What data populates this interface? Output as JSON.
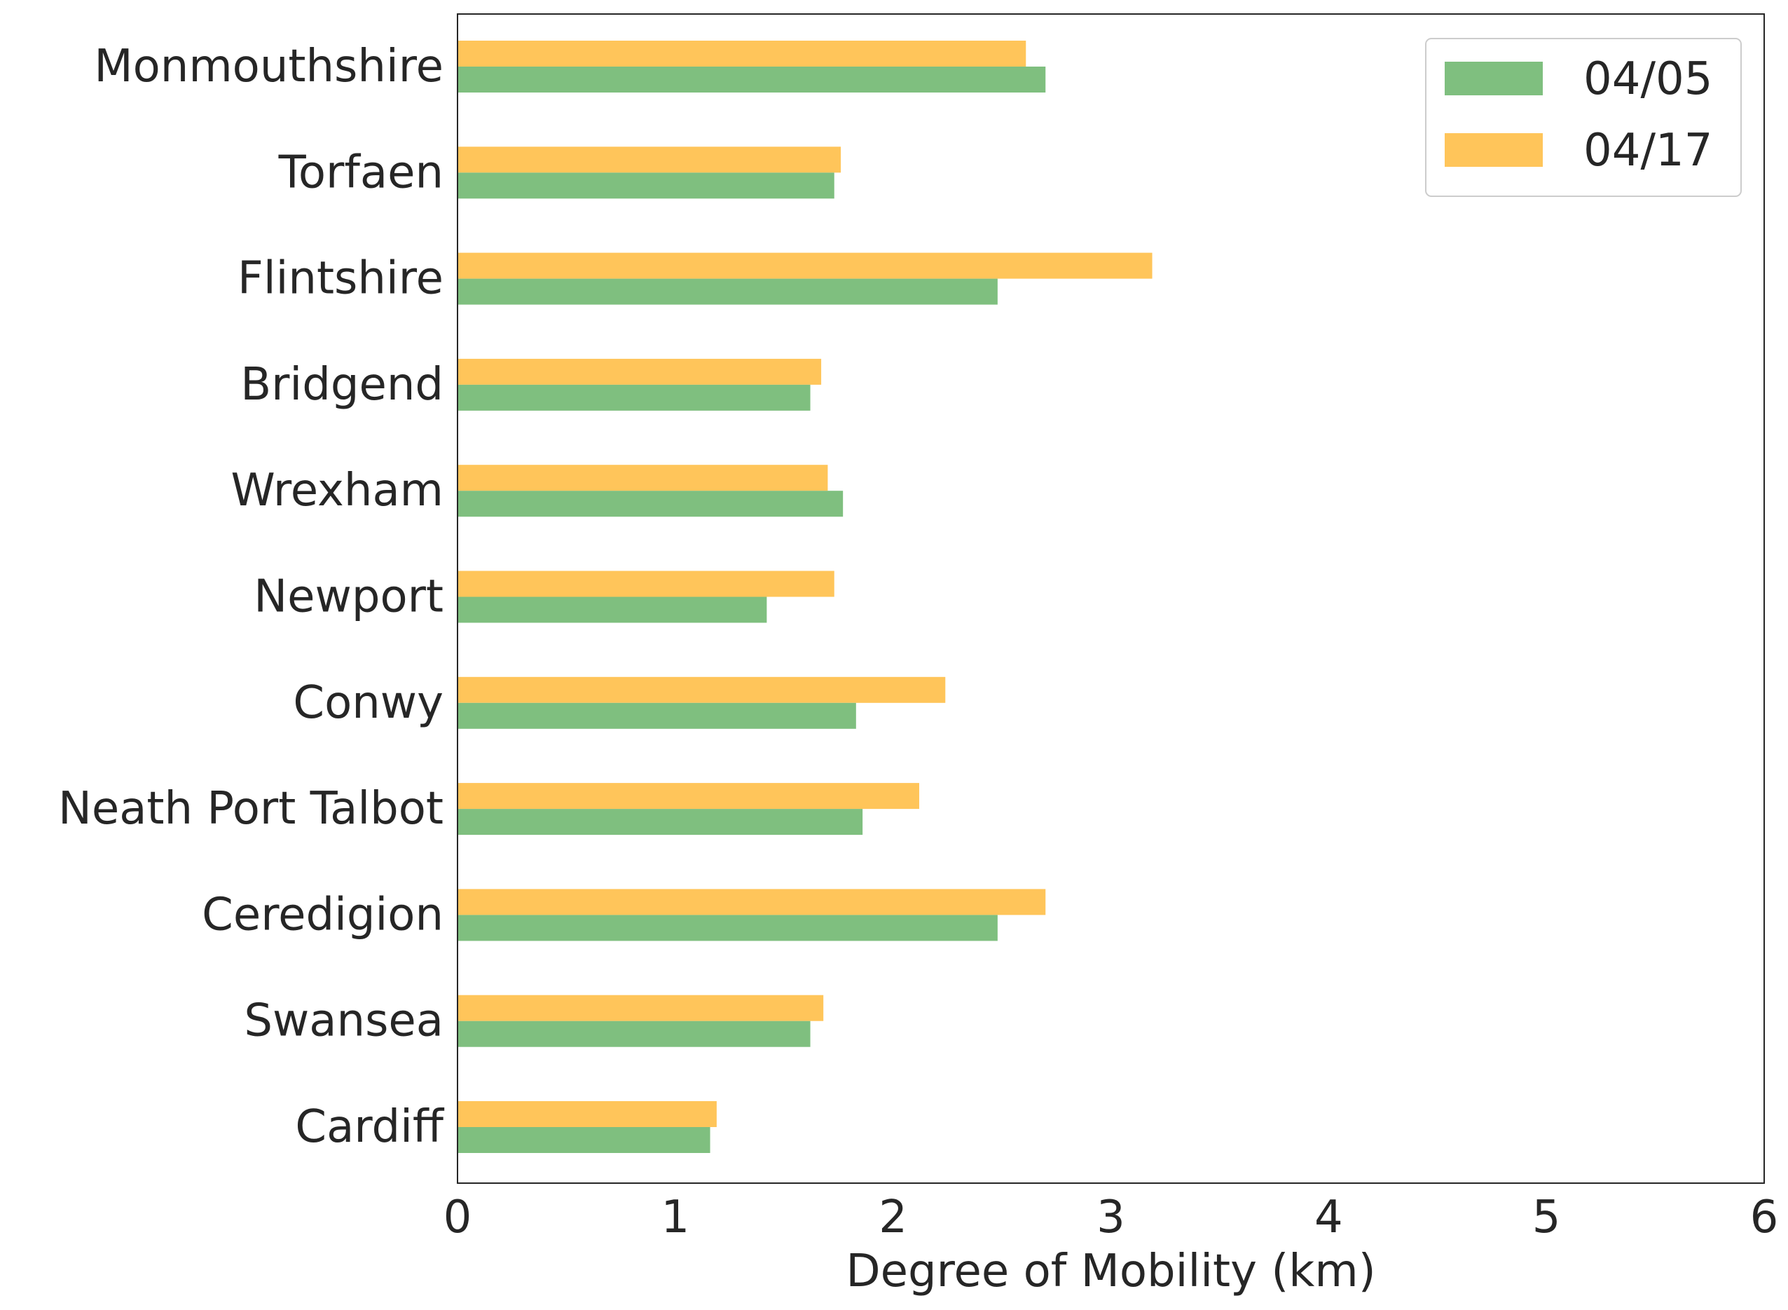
{
  "chart_data": {
    "type": "bar",
    "orientation": "horizontal",
    "categories": [
      "Monmouthshire",
      "Torfaen",
      "Flintshire",
      "Bridgend",
      "Wrexham",
      "Newport",
      "Conwy",
      "Neath Port Talbot",
      "Ceredigion",
      "Swansea",
      "Cardiff"
    ],
    "series": [
      {
        "name": "04/05",
        "color": "#7fbf7f",
        "values": [
          2.7,
          1.73,
          2.48,
          1.62,
          1.77,
          1.42,
          1.83,
          1.86,
          2.48,
          1.62,
          1.16
        ]
      },
      {
        "name": "04/17",
        "color": "#ffc55a",
        "values": [
          2.61,
          1.76,
          3.19,
          1.67,
          1.7,
          1.73,
          2.24,
          2.12,
          2.7,
          1.68,
          1.19
        ]
      }
    ],
    "title": "",
    "xlabel": "Degree of Mobility (km)",
    "ylabel": "",
    "xlim": [
      0,
      6
    ],
    "xticks": [
      "0",
      "1",
      "2",
      "3",
      "4",
      "5",
      "6"
    ],
    "grid": false,
    "legend_position": "top-right"
  }
}
